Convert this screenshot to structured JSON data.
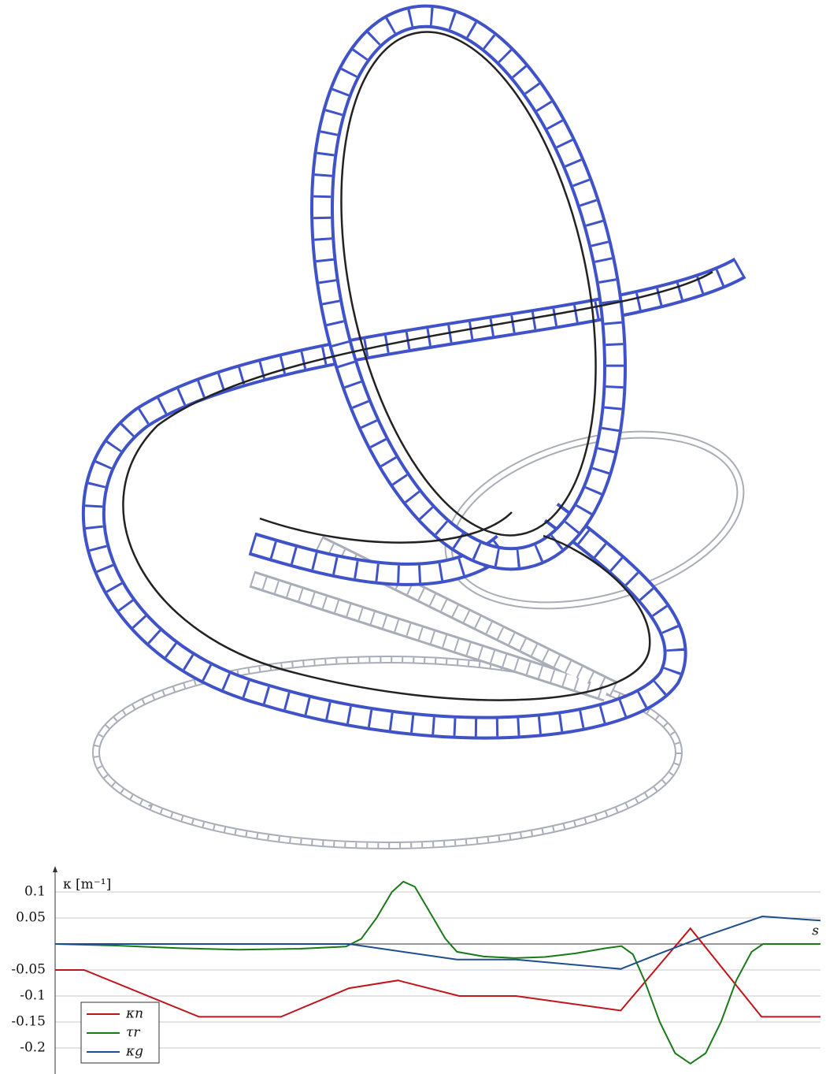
{
  "chart_data": {
    "type": "line",
    "y_label": "κ [m⁻¹]",
    "x_label": "s",
    "xlim": [
      0,
      100
    ],
    "ylim": [
      -0.25,
      0.15
    ],
    "yticks": [
      0.1,
      0.05,
      -0.05,
      -0.1,
      -0.15,
      -0.2
    ],
    "grid": true,
    "legend": "lower left",
    "series": [
      {
        "name": "κn",
        "color": "#c0161b",
        "x": [
          0,
          3.8,
          18.8,
          29.5,
          38.4,
          44.8,
          52.8,
          60.2,
          73.9,
          83,
          92.3,
          100
        ],
        "values": [
          -0.05,
          -0.05,
          -0.14,
          -0.14,
          -0.085,
          -0.07,
          -0.1,
          -0.1,
          -0.128,
          0.03,
          -0.14,
          -0.14
        ]
      },
      {
        "name": "τr",
        "color": "#1a7a18",
        "x": [
          0,
          8,
          16,
          24,
          32,
          38,
          40,
          42,
          44,
          45.5,
          47,
          49,
          51,
          52.5,
          56,
          60,
          64,
          68,
          72,
          74,
          75.5,
          77,
          79,
          81,
          83,
          85,
          87,
          89,
          91,
          92.5,
          100
        ],
        "values": [
          0,
          -0.003,
          -0.008,
          -0.011,
          -0.009,
          -0.005,
          0.01,
          0.05,
          0.1,
          0.12,
          0.11,
          0.06,
          0.01,
          -0.015,
          -0.024,
          -0.027,
          -0.025,
          -0.018,
          -0.008,
          -0.004,
          -0.02,
          -0.07,
          -0.15,
          -0.21,
          -0.23,
          -0.21,
          -0.15,
          -0.07,
          -0.015,
          0,
          0
        ]
      },
      {
        "name": "κg",
        "color": "#1f4e8c",
        "x": [
          0,
          38.4,
          52.5,
          60.2,
          73.9,
          78.7,
          84.9,
          92.4,
          100
        ],
        "values": [
          0,
          0,
          -0.03,
          -0.03,
          -0.048,
          -0.02,
          0.015,
          0.053,
          0.045
        ]
      }
    ]
  }
}
